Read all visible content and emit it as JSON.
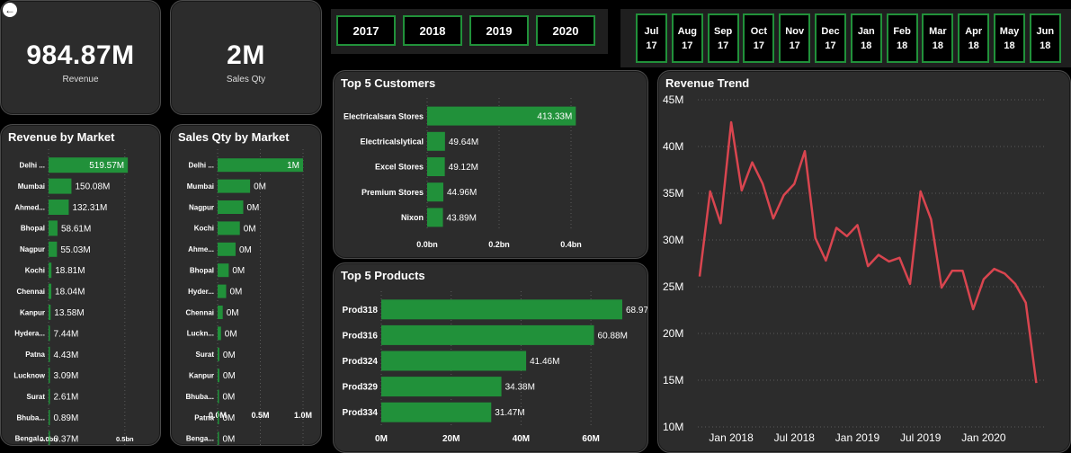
{
  "kpis": {
    "revenue": {
      "value": "984.87M",
      "label": "Revenue"
    },
    "sales_qty": {
      "value": "2M",
      "label": "Sales Qty"
    }
  },
  "years": [
    "2017",
    "2018",
    "2019",
    "2020"
  ],
  "months": [
    {
      "m": "Jul",
      "y": "17"
    },
    {
      "m": "Aug",
      "y": "17"
    },
    {
      "m": "Sep",
      "y": "17"
    },
    {
      "m": "Oct",
      "y": "17"
    },
    {
      "m": "Nov",
      "y": "17"
    },
    {
      "m": "Dec",
      "y": "17"
    },
    {
      "m": "Jan",
      "y": "18"
    },
    {
      "m": "Feb",
      "y": "18"
    },
    {
      "m": "Mar",
      "y": "18"
    },
    {
      "m": "Apr",
      "y": "18"
    },
    {
      "m": "May",
      "y": "18"
    },
    {
      "m": "Jun",
      "y": "18"
    }
  ],
  "colors": {
    "bar": "#21913a",
    "line": "#d9454f",
    "card": "#2c2c2c"
  },
  "chart_data": [
    {
      "id": "revenue_by_market",
      "type": "bar",
      "orientation": "horizontal",
      "title": "Revenue by Market",
      "categories": [
        "Delhi ...",
        "Mumbai",
        "Ahmed...",
        "Bhopal",
        "Nagpur",
        "Kochi",
        "Chennai",
        "Kanpur",
        "Hydera...",
        "Patna",
        "Lucknow",
        "Surat",
        "Bhuba...",
        "Bengal..."
      ],
      "values": [
        519.57,
        150.08,
        132.31,
        58.61,
        55.03,
        18.81,
        18.04,
        13.58,
        7.44,
        4.43,
        3.09,
        2.61,
        0.89,
        0.37
      ],
      "labels": [
        "519.57M",
        "150.08M",
        "132.31M",
        "58.61M",
        "55.03M",
        "18.81M",
        "18.04M",
        "13.58M",
        "7.44M",
        "4.43M",
        "3.09M",
        "2.61M",
        "0.89M",
        "0.37M"
      ],
      "xticks": [
        {
          "v": 0,
          "t": "0.0bn"
        },
        {
          "v": 500,
          "t": "0.5bn"
        }
      ],
      "xlim": [
        0,
        560
      ]
    },
    {
      "id": "sales_qty_by_market",
      "type": "bar",
      "orientation": "horizontal",
      "title": "Sales Qty by Market",
      "categories": [
        "Delhi ...",
        "Mumbai",
        "Nagpur",
        "Kochi",
        "Ahme...",
        "Bhopal",
        "Hyder...",
        "Chennai",
        "Luckn...",
        "Surat",
        "Kanpur",
        "Bhuba...",
        "Patna",
        "Benga..."
      ],
      "values": [
        1.0,
        0.38,
        0.3,
        0.26,
        0.21,
        0.13,
        0.1,
        0.06,
        0.04,
        0.02,
        0.02,
        0.01,
        0.01,
        0.005
      ],
      "labels": [
        "1M",
        "0M",
        "0M",
        "0M",
        "0M",
        "0M",
        "0M",
        "0M",
        "0M",
        "0M",
        "0M",
        "0M",
        "0M",
        "0M"
      ],
      "xticks": [
        {
          "v": 0,
          "t": "0.0M"
        },
        {
          "v": 0.5,
          "t": "0.5M"
        },
        {
          "v": 1.0,
          "t": "1.0M"
        }
      ],
      "xlim": [
        0,
        1.0
      ]
    },
    {
      "id": "top_customers",
      "type": "bar",
      "orientation": "horizontal",
      "title": "Top 5 Customers",
      "categories": [
        "Electricalsara Stores",
        "Electricalslytical",
        "Excel Stores",
        "Premium Stores",
        "Nixon"
      ],
      "values": [
        413.33,
        49.64,
        49.12,
        44.96,
        43.89
      ],
      "labels": [
        "413.33M",
        "49.64M",
        "49.12M",
        "44.96M",
        "43.89M"
      ],
      "xticks": [
        {
          "v": 0,
          "t": "0.0bn"
        },
        {
          "v": 200,
          "t": "0.2bn"
        },
        {
          "v": 400,
          "t": "0.4bn"
        }
      ],
      "xlim": [
        0,
        450
      ]
    },
    {
      "id": "top_products",
      "type": "bar",
      "orientation": "horizontal",
      "title": "Top 5 Products",
      "categories": [
        "Prod318",
        "Prod316",
        "Prod324",
        "Prod329",
        "Prod334"
      ],
      "values": [
        68.97,
        60.88,
        41.46,
        34.38,
        31.47
      ],
      "labels": [
        "68.97M",
        "60.88M",
        "41.46M",
        "34.38M",
        "31.47M"
      ],
      "xticks": [
        {
          "v": 0,
          "t": "0M"
        },
        {
          "v": 20,
          "t": "20M"
        },
        {
          "v": 40,
          "t": "40M"
        },
        {
          "v": 60,
          "t": "60M"
        }
      ],
      "xlim": [
        0,
        70
      ]
    },
    {
      "id": "revenue_trend",
      "type": "line",
      "title": "Revenue Trend",
      "x": [
        "2017-10",
        "2017-11",
        "2017-12",
        "2018-01",
        "2018-02",
        "2018-03",
        "2018-04",
        "2018-05",
        "2018-06",
        "2018-07",
        "2018-08",
        "2018-09",
        "2018-10",
        "2018-11",
        "2018-12",
        "2019-01",
        "2019-02",
        "2019-03",
        "2019-04",
        "2019-05",
        "2019-06",
        "2019-07",
        "2019-08",
        "2019-09",
        "2019-10",
        "2019-11",
        "2019-12",
        "2020-01",
        "2020-02",
        "2020-03",
        "2020-04",
        "2020-05",
        "2020-06"
      ],
      "series": [
        {
          "values": [
            26.1,
            35.2,
            31.8,
            42.6,
            35.3,
            38.3,
            36.0,
            32.3,
            34.8,
            36.0,
            39.5,
            30.2,
            27.8,
            31.3,
            30.4,
            31.6,
            27.2,
            28.4,
            27.7,
            28.1,
            25.3,
            35.2,
            32.2,
            24.9,
            26.7,
            26.7,
            22.6,
            25.8,
            26.9,
            26.4,
            25.3,
            23.3,
            14.7
          ]
        }
      ],
      "xticks": [
        "Jan 2018",
        "Jul 2018",
        "Jan 2019",
        "Jul 2019",
        "Jan 2020"
      ],
      "yticks": [
        "10M",
        "15M",
        "20M",
        "25M",
        "30M",
        "35M",
        "40M",
        "45M"
      ],
      "ylim": [
        10,
        45
      ]
    }
  ]
}
